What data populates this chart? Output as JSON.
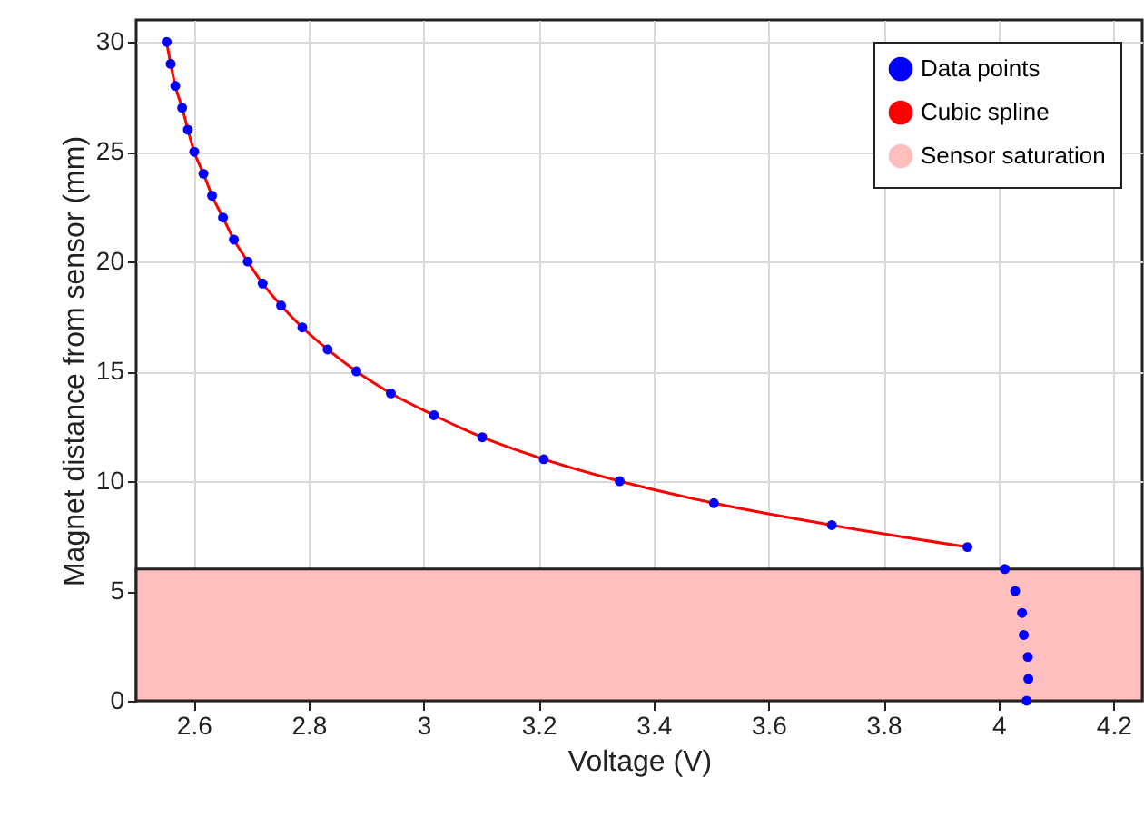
{
  "chart_data": {
    "type": "scatter",
    "xlabel": "Voltage (V)",
    "ylabel": "Magnet distance from sensor (mm)",
    "xlim": [
      2.5,
      4.25
    ],
    "xticks": [
      2.6,
      2.8,
      3,
      3.2,
      3.4,
      3.6,
      3.8,
      4,
      4.2
    ],
    "ylim": [
      0,
      31
    ],
    "yticks": [
      0,
      5,
      10,
      15,
      20,
      25,
      30
    ],
    "grid": true,
    "legend": "top right",
    "marker": "circle",
    "series": [
      {
        "name": "Data points",
        "color": "#0000ff",
        "x": [
          2.553,
          2.56,
          2.568,
          2.58,
          2.59,
          2.601,
          2.617,
          2.632,
          2.651,
          2.67,
          2.694,
          2.72,
          2.752,
          2.789,
          2.833,
          2.883,
          2.943,
          3.018,
          3.102,
          3.209,
          3.341,
          3.505,
          3.71,
          3.946,
          4.011,
          4.029,
          4.041,
          4.044,
          4.051,
          4.052,
          4.049
        ],
        "values": [
          30,
          29,
          28,
          27,
          26,
          25,
          24,
          23,
          22,
          21,
          20,
          19,
          18,
          17,
          16,
          15,
          14,
          13,
          12,
          11,
          10,
          9,
          8,
          7,
          6,
          5,
          4,
          3,
          2,
          1,
          0
        ]
      },
      {
        "name": "Cubic spline",
        "type": "line",
        "marker": "none",
        "color": "#ff0000",
        "x": [
          2.553,
          2.56,
          2.568,
          2.58,
          2.59,
          2.601,
          2.617,
          2.632,
          2.651,
          2.67,
          2.694,
          2.72,
          2.752,
          2.789,
          2.833,
          2.883,
          2.943,
          3.018,
          3.102,
          3.209,
          3.341,
          3.505,
          3.71,
          3.946
        ],
        "values": [
          30,
          29,
          28,
          27,
          26,
          25,
          24,
          23,
          22,
          21,
          20,
          19,
          18,
          17,
          16,
          15,
          14,
          13,
          12,
          11,
          10,
          9,
          8,
          7
        ]
      }
    ],
    "bands": [
      {
        "axis": "y",
        "from": 0,
        "to": 6,
        "label": "Sensor saturation",
        "color": "#ffbfbf"
      }
    ]
  }
}
